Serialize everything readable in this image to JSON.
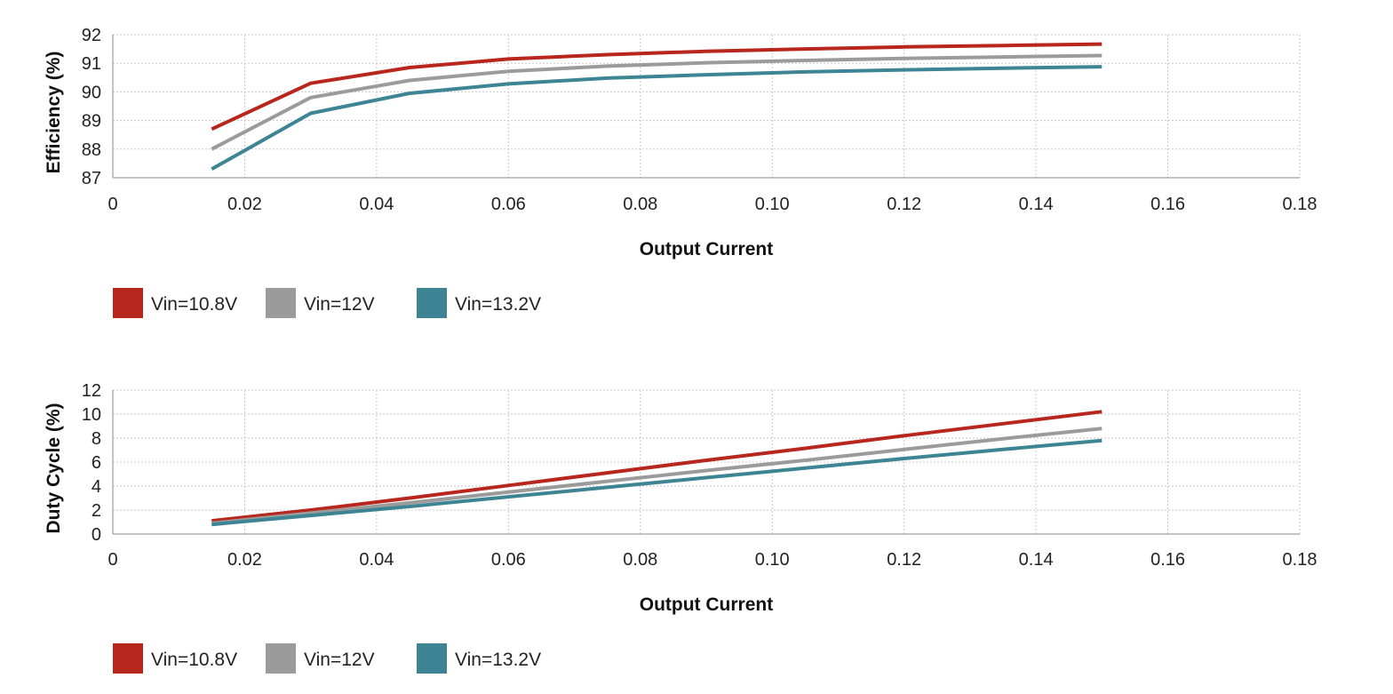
{
  "chart_data": [
    {
      "type": "line",
      "title": "",
      "xlabel": "Output Current",
      "ylabel": "Efficiency (%)",
      "xlim": [
        0,
        0.18
      ],
      "ylim": [
        87,
        92
      ],
      "xticks": [
        "0",
        "0.02",
        "0.04",
        "0.06",
        "0.08",
        "0.10",
        "0.12",
        "0.14",
        "0.16",
        "0.18"
      ],
      "yticks": [
        "87",
        "88",
        "89",
        "90",
        "91",
        "92"
      ],
      "grid": true,
      "legend_position": "bottom-left",
      "x": [
        0.015,
        0.03,
        0.045,
        0.06,
        0.075,
        0.09,
        0.105,
        0.12,
        0.135,
        0.15
      ],
      "series": [
        {
          "name": "Vin=10.8V",
          "color": "#b8271e",
          "values": [
            88.7,
            90.3,
            90.85,
            91.15,
            91.3,
            91.42,
            91.5,
            91.57,
            91.62,
            91.67
          ]
        },
        {
          "name": "Vin=12V",
          "color": "#9b9b9b",
          "values": [
            88.0,
            89.8,
            90.4,
            90.72,
            90.9,
            91.02,
            91.1,
            91.17,
            91.22,
            91.27
          ]
        },
        {
          "name": "Vin=13.2V",
          "color": "#3d8494",
          "values": [
            87.3,
            89.25,
            89.95,
            90.28,
            90.48,
            90.6,
            90.7,
            90.77,
            90.83,
            90.88
          ]
        }
      ]
    },
    {
      "type": "line",
      "title": "",
      "xlabel": "Output Current",
      "ylabel": "Duty Cycle (%)",
      "xlim": [
        0,
        0.18
      ],
      "ylim": [
        0,
        12
      ],
      "xticks": [
        "0",
        "0.02",
        "0.04",
        "0.06",
        "0.08",
        "0.10",
        "0.12",
        "0.14",
        "0.16",
        "0.18"
      ],
      "yticks": [
        "0",
        "2",
        "4",
        "6",
        "8",
        "10",
        "12"
      ],
      "grid": true,
      "legend_position": "bottom-left",
      "x": [
        0.015,
        0.03,
        0.045,
        0.06,
        0.075,
        0.09,
        0.105,
        0.12,
        0.135,
        0.15
      ],
      "series": [
        {
          "name": "Vin=10.8V",
          "color": "#b8271e",
          "values": [
            1.1,
            2.0,
            3.0,
            4.05,
            5.1,
            6.15,
            7.15,
            8.2,
            9.2,
            10.2
          ]
        },
        {
          "name": "Vin=12V",
          "color": "#9b9b9b",
          "values": [
            0.9,
            1.75,
            2.6,
            3.5,
            4.4,
            5.3,
            6.15,
            7.05,
            7.95,
            8.8
          ]
        },
        {
          "name": "Vin=13.2V",
          "color": "#3d8494",
          "values": [
            0.8,
            1.55,
            2.3,
            3.1,
            3.9,
            4.7,
            5.5,
            6.3,
            7.05,
            7.8
          ]
        }
      ]
    }
  ]
}
